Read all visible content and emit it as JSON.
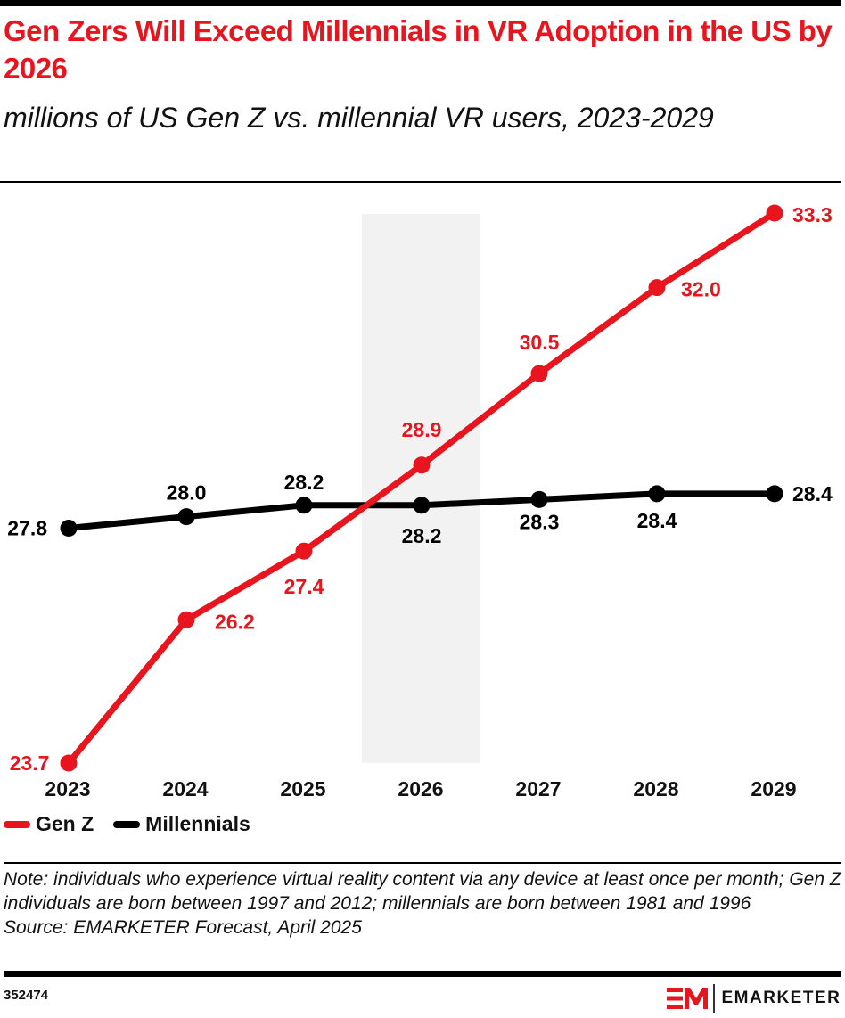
{
  "header": {
    "title": "Gen Zers Will Exceed Millennials in VR Adoption in the US by 2026",
    "subtitle": "millions of US Gen Z vs. millennial VR users, 2023-2029"
  },
  "chart_data": {
    "type": "line",
    "title": "Gen Zers Will Exceed Millennials in VR Adoption in the US by 2026",
    "subtitle": "millions of US Gen Z vs. millennial VR users, 2023-2029",
    "xlabel": "",
    "ylabel": "",
    "categories": [
      "2023",
      "2024",
      "2025",
      "2026",
      "2027",
      "2028",
      "2029"
    ],
    "series": [
      {
        "name": "Gen Z",
        "color": "#e8141e",
        "values": [
          23.7,
          26.2,
          27.4,
          28.9,
          30.5,
          32.0,
          33.3
        ],
        "labels": [
          "23.7",
          "26.2",
          "27.4",
          "28.9",
          "30.5",
          "32.0",
          "33.3"
        ]
      },
      {
        "name": "Millennials",
        "color": "#000000",
        "values": [
          27.8,
          28.0,
          28.2,
          28.2,
          28.3,
          28.4,
          28.4
        ],
        "labels": [
          "27.8",
          "28.0",
          "28.2",
          "28.2",
          "28.3",
          "28.4",
          "28.4"
        ]
      }
    ],
    "ylim": [
      23.7,
      33.3
    ],
    "grid": false,
    "highlight_category": "2026",
    "highlight_color": "#f2f2f2",
    "legend_position": "bottom-left"
  },
  "legend": {
    "items": [
      {
        "label": "Gen Z",
        "color": "#e8141e"
      },
      {
        "label": "Millennials",
        "color": "#000000"
      }
    ]
  },
  "footer": {
    "note": "Note: individuals who experience virtual reality content via any device at least once per month; Gen Z individuals are born between 1997 and 2012; millennials are born between 1981 and 1996",
    "source": "Source: EMARKETER Forecast, April 2025",
    "chart_id": "352474",
    "brand": "EMARKETER",
    "brand_color": "#e8141e"
  }
}
